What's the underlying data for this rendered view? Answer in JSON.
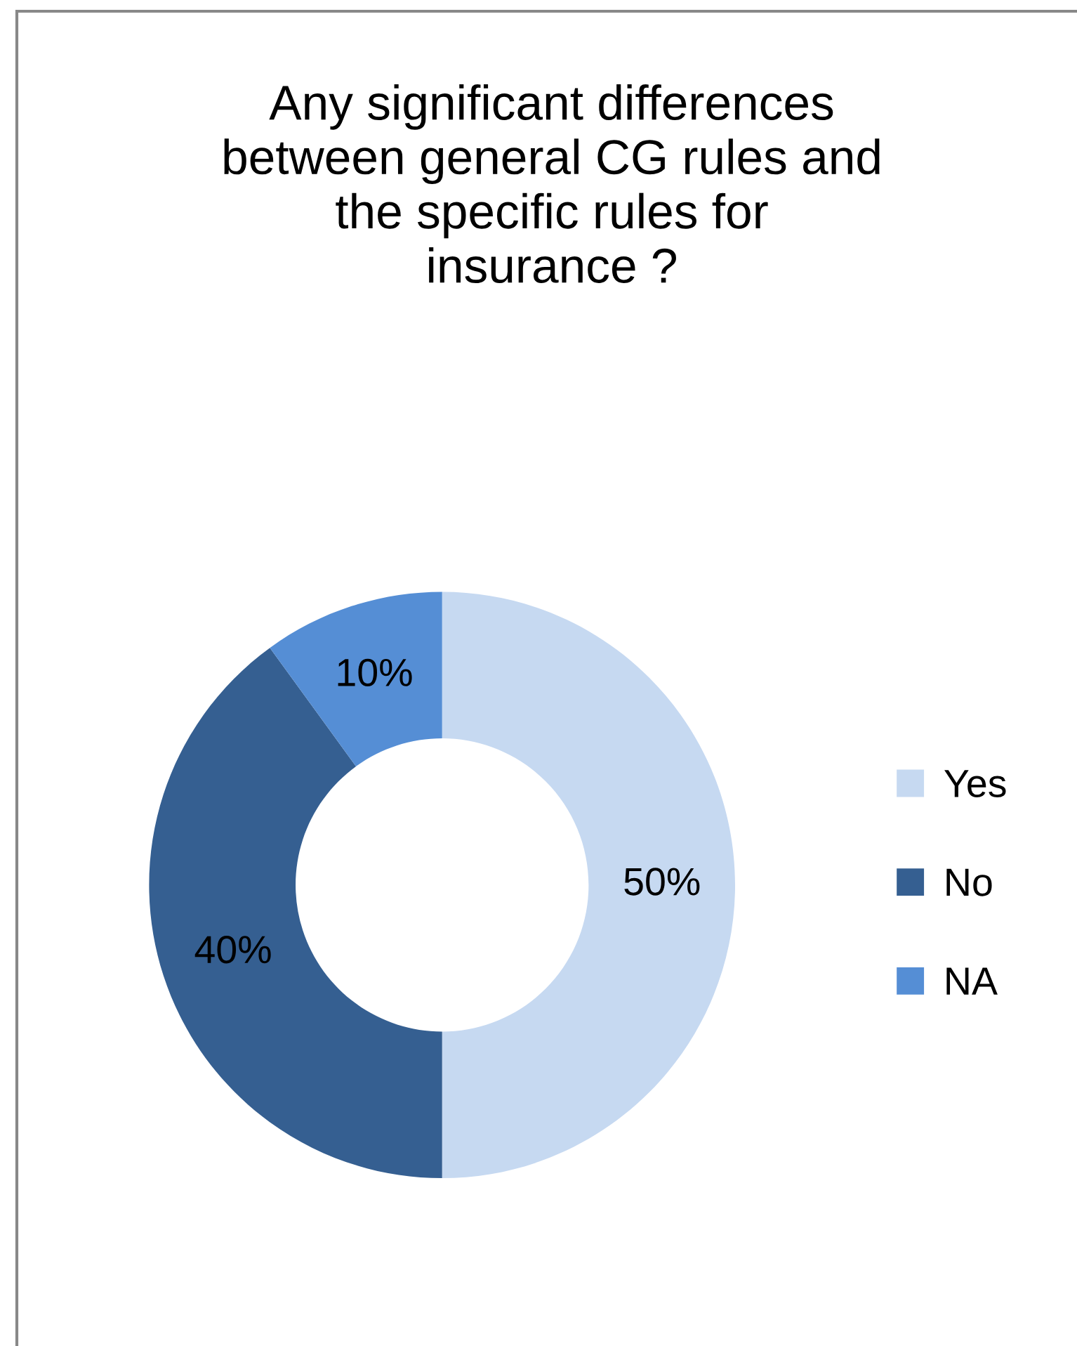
{
  "chart_data": {
    "type": "donut",
    "title": "Any significant differences\nbetween general CG rules and\nthe specific rules for\ninsurance ?",
    "categories": [
      "Yes",
      "No",
      "NA"
    ],
    "values": [
      50,
      40,
      10
    ],
    "colors": [
      "#c6d9f1",
      "#355f91",
      "#558ed5"
    ],
    "value_labels": [
      "50%",
      "40%",
      "10%"
    ],
    "legend": "right"
  }
}
